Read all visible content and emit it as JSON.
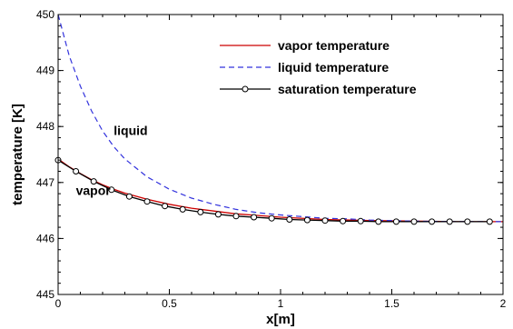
{
  "chart_data": {
    "type": "line",
    "xlabel": "x[m]",
    "ylabel": "temperature [K]",
    "xlim": [
      0,
      2
    ],
    "ylim": [
      445,
      450
    ],
    "xticks": [
      "0",
      "0.5",
      "1",
      "1.5",
      "2"
    ],
    "yticks": [
      "445",
      "446",
      "447",
      "448",
      "449",
      "450"
    ],
    "legend_position": "top-right",
    "grid": false,
    "series": [
      {
        "name": "vapor temperature",
        "color": "#cc0000",
        "style": "solid",
        "x": [
          0,
          0.05,
          0.1,
          0.15,
          0.2,
          0.25,
          0.3,
          0.4,
          0.5,
          0.6,
          0.7,
          0.8,
          0.9,
          1.0,
          1.2,
          1.4,
          1.6,
          1.8,
          2.0
        ],
        "y": [
          447.42,
          447.28,
          447.16,
          447.05,
          446.96,
          446.88,
          446.81,
          446.7,
          446.61,
          446.54,
          446.49,
          446.44,
          446.41,
          446.38,
          446.34,
          446.32,
          446.31,
          446.3,
          446.3
        ]
      },
      {
        "name": "liquid temperature",
        "color": "#3333dd",
        "style": "dashed",
        "x": [
          0,
          0.05,
          0.1,
          0.15,
          0.2,
          0.25,
          0.3,
          0.4,
          0.5,
          0.6,
          0.7,
          0.8,
          0.9,
          1.0,
          1.1,
          1.2,
          1.3,
          1.4,
          1.5,
          1.6,
          1.8,
          2.0
        ],
        "y": [
          450.0,
          449.26,
          448.72,
          448.28,
          447.92,
          447.64,
          447.42,
          447.1,
          446.88,
          446.72,
          446.61,
          446.52,
          446.46,
          446.42,
          446.39,
          446.36,
          446.35,
          446.33,
          446.32,
          446.31,
          446.3,
          446.3
        ]
      },
      {
        "name": "saturation temperature",
        "color": "#000000",
        "style": "solid-circle-markers",
        "x": [
          0,
          0.08,
          0.16,
          0.24,
          0.32,
          0.4,
          0.48,
          0.56,
          0.64,
          0.72,
          0.8,
          0.88,
          0.96,
          1.04,
          1.12,
          1.2,
          1.28,
          1.36,
          1.44,
          1.52,
          1.6,
          1.68,
          1.76,
          1.84,
          1.94
        ],
        "y": [
          447.4,
          447.2,
          447.02,
          446.87,
          446.75,
          446.66,
          446.58,
          446.52,
          446.47,
          446.43,
          446.4,
          446.38,
          446.36,
          446.34,
          446.33,
          446.32,
          446.31,
          446.31,
          446.3,
          446.3,
          446.3,
          446.3,
          446.3,
          446.3,
          446.3
        ]
      }
    ],
    "annotations": [
      {
        "text": "liquid",
        "x": 0.25,
        "y": 447.85
      },
      {
        "text": "vapor",
        "x": 0.08,
        "y": 446.78
      }
    ]
  }
}
